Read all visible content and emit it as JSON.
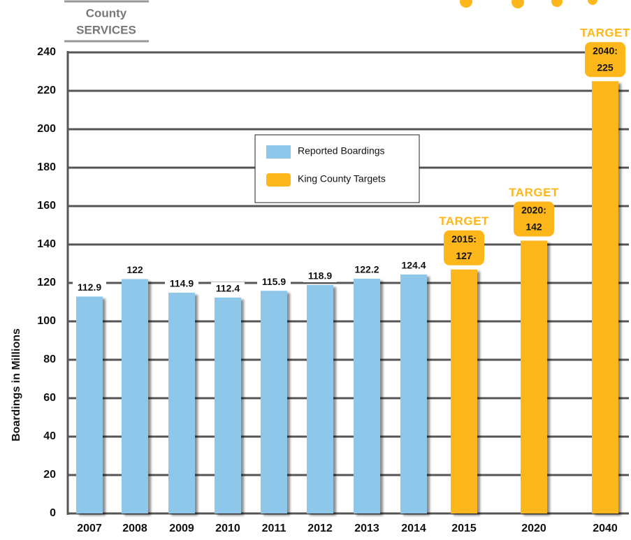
{
  "header": {
    "line1": "County",
    "line2": "SERVICES"
  },
  "chart_data": {
    "type": "bar",
    "y_axis_label": "Boardings in Millions",
    "categories": [
      "2007",
      "2008",
      "2009",
      "2010",
      "2011",
      "2012",
      "2013",
      "2014",
      "2015",
      "2020",
      "2040"
    ],
    "series": [
      {
        "name": "Reported Boardings",
        "color": "#8ec7ea",
        "values": [
          112.9,
          122,
          114.9,
          112.4,
          115.9,
          118.9,
          122.2,
          124.4,
          null,
          null,
          null
        ]
      },
      {
        "name": "King County Targets",
        "color": "#fdb71a",
        "values": [
          null,
          null,
          null,
          null,
          null,
          null,
          null,
          null,
          127,
          142,
          225
        ],
        "value_labels": [
          null,
          null,
          null,
          null,
          null,
          null,
          null,
          null,
          "2015: 127",
          "2020: 142",
          "2040: 225"
        ],
        "annotations": [
          null,
          null,
          null,
          null,
          null,
          null,
          null,
          null,
          "TARGET",
          "TARGET",
          "TARGET"
        ]
      }
    ],
    "ylim": [
      0,
      240
    ],
    "yticks": [
      0,
      20,
      40,
      60,
      80,
      100,
      120,
      140,
      160,
      180,
      200,
      220,
      240
    ],
    "grid": true
  }
}
